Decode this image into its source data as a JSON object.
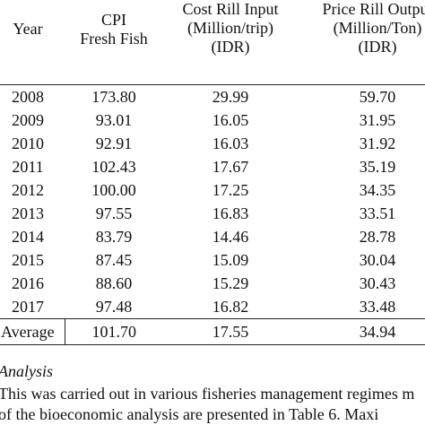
{
  "table": {
    "headers": {
      "year": [
        "Year"
      ],
      "cpi": [
        "CPI",
        "Fresh Fish"
      ],
      "cost": [
        "Cost Rill Input",
        "(Million/trip)",
        "(IDR)"
      ],
      "price": [
        "Price Rill Output",
        "(Million/Ton)",
        "(IDR)"
      ]
    },
    "rows": [
      {
        "year": "2008",
        "cpi": "173.80",
        "cost": "29.99",
        "price": "59.70"
      },
      {
        "year": "2009",
        "cpi": "93.01",
        "cost": "16.05",
        "price": "31.95"
      },
      {
        "year": "2010",
        "cpi": "92.91",
        "cost": "16.03",
        "price": "31.92"
      },
      {
        "year": "2011",
        "cpi": "102.43",
        "cost": "17.67",
        "price": "35.19"
      },
      {
        "year": "2012",
        "cpi": "100.00",
        "cost": "17.25",
        "price": "34.35"
      },
      {
        "year": "2013",
        "cpi": "97.55",
        "cost": "16.83",
        "price": "33.51"
      },
      {
        "year": "2014",
        "cpi": "83.79",
        "cost": "14.46",
        "price": "28.78"
      },
      {
        "year": "2015",
        "cpi": "87.45",
        "cost": "15.09",
        "price": "30.04"
      },
      {
        "year": "2016",
        "cpi": "88.60",
        "cost": "15.29",
        "price": "30.43"
      },
      {
        "year": "2017",
        "cpi": "97.48",
        "cost": "16.82",
        "price": "33.48"
      }
    ],
    "average": {
      "label": "Average",
      "cpi": "101.70",
      "cost": "17.55",
      "price": "34.94"
    }
  },
  "text": {
    "caption": "Analysis",
    "para1": "This was carried out in various fisheries management regimes m",
    "para2": "of the bioeconomic analysis are presented in Table 6. Maxi"
  }
}
